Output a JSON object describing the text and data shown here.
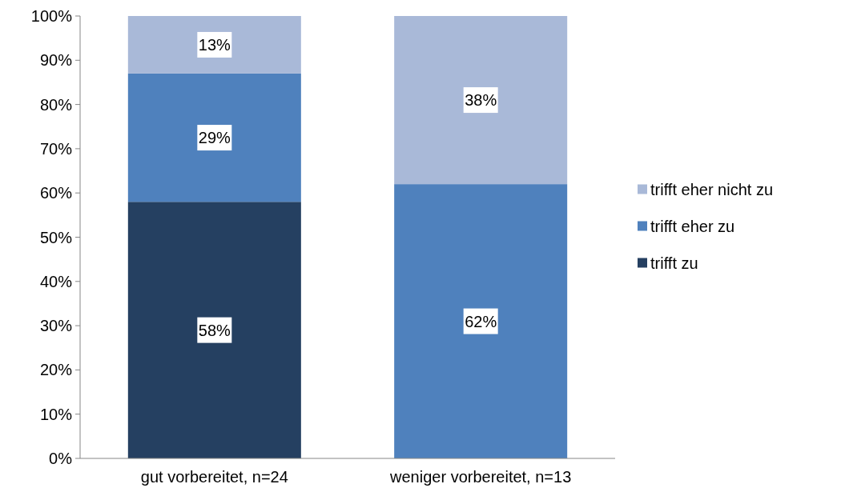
{
  "chart_data": {
    "type": "bar",
    "stacked": true,
    "categories": [
      "gut vorbereitet, n=24",
      "weniger vorbereitet, n=13"
    ],
    "series": [
      {
        "name": "trifft zu",
        "color": "#254061",
        "values": [
          58,
          0
        ],
        "value_labels": [
          "58%",
          null
        ]
      },
      {
        "name": "trifft eher zu",
        "color": "#4f81bd",
        "values": [
          29,
          62
        ],
        "value_labels": [
          "29%",
          "62%"
        ]
      },
      {
        "name": "trifft eher nicht zu",
        "color": "#a9b9d8",
        "values": [
          13,
          38
        ],
        "value_labels": [
          "13%",
          "38%"
        ]
      }
    ],
    "ylim": [
      0,
      100
    ],
    "yticks": [
      {
        "value": 0,
        "label": "0%"
      },
      {
        "value": 10,
        "label": "10%"
      },
      {
        "value": 20,
        "label": "20%"
      },
      {
        "value": 30,
        "label": "30%"
      },
      {
        "value": 40,
        "label": "40%"
      },
      {
        "value": 50,
        "label": "50%"
      },
      {
        "value": 60,
        "label": "60%"
      },
      {
        "value": 70,
        "label": "70%"
      },
      {
        "value": 80,
        "label": "80%"
      },
      {
        "value": 90,
        "label": "90%"
      },
      {
        "value": 100,
        "label": "100%"
      }
    ],
    "legend": "right",
    "grid": false
  }
}
